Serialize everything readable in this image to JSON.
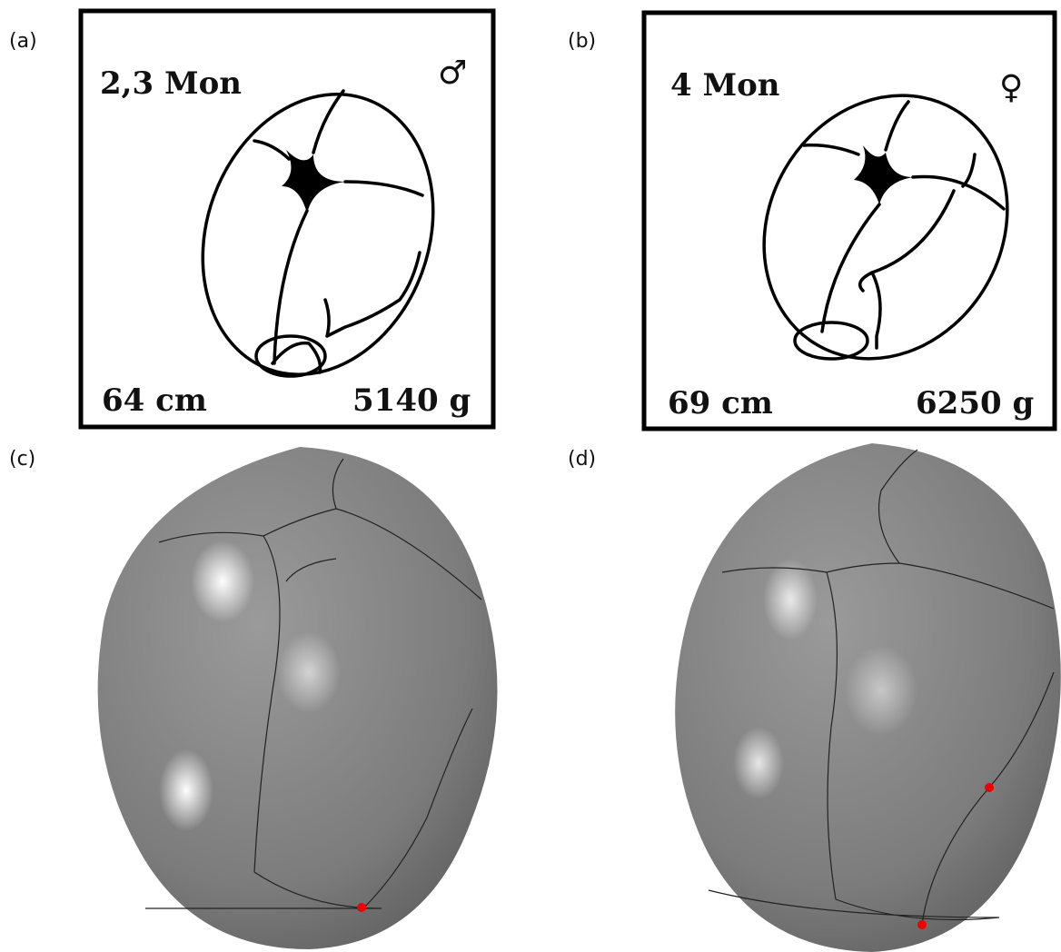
{
  "panels": [
    {
      "label": "(a)",
      "age": "2,3 Mon",
      "sex": "♂",
      "length": "64 cm",
      "weight": "5140 g"
    },
    {
      "label": "(b)",
      "age": "4 Mon",
      "sex": "♀",
      "length": "69 cm",
      "weight": "6250 g"
    },
    {
      "label": "(c)"
    },
    {
      "label": "(d)"
    }
  ]
}
